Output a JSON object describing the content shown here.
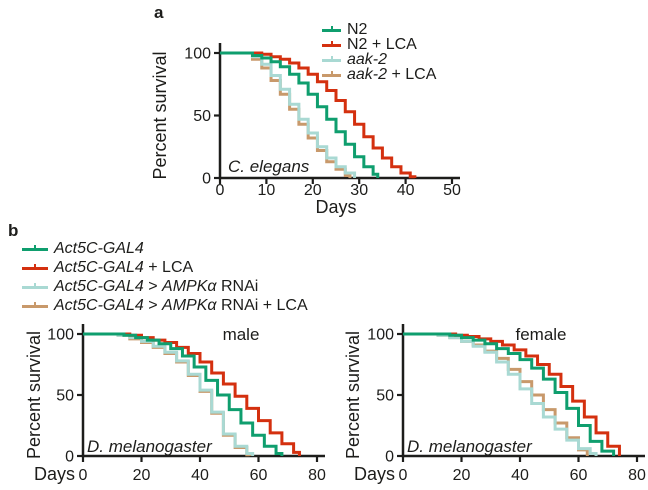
{
  "panels": {
    "a": {
      "label": "a"
    },
    "b": {
      "label": "b"
    }
  },
  "colors": {
    "green": "#0f9e6e",
    "red": "#d4300f",
    "lightblue": "#a9d9d3",
    "tan": "#c8996b",
    "axis": "#1d1d1b"
  },
  "legends": {
    "a": {
      "items": [
        {
          "color": "#0f9e6e",
          "segments": [
            {
              "text": "N2",
              "italic": false
            }
          ]
        },
        {
          "color": "#d4300f",
          "segments": [
            {
              "text": "N2 + LCA",
              "italic": false
            }
          ]
        },
        {
          "color": "#a9d9d3",
          "segments": [
            {
              "text": "aak-2",
              "italic": true
            }
          ]
        },
        {
          "color": "#c8996b",
          "segments": [
            {
              "text": "aak-2",
              "italic": true
            },
            {
              "text": " + LCA",
              "italic": false
            }
          ]
        }
      ]
    },
    "b": {
      "items": [
        {
          "color": "#0f9e6e",
          "segments": [
            {
              "text": "Act5C-GAL4",
              "italic": true
            }
          ]
        },
        {
          "color": "#d4300f",
          "segments": [
            {
              "text": "Act5C-GAL4",
              "italic": true
            },
            {
              "text": " + LCA",
              "italic": false
            }
          ]
        },
        {
          "color": "#a9d9d3",
          "segments": [
            {
              "text": "Act5C-GAL4",
              "italic": true
            },
            {
              "text": " > ",
              "italic": false
            },
            {
              "text": "AMPKα",
              "italic": true
            },
            {
              "text": " RNAi",
              "italic": false
            }
          ]
        },
        {
          "color": "#c8996b",
          "segments": [
            {
              "text": "Act5C-GAL4",
              "italic": true
            },
            {
              "text": " > ",
              "italic": false
            },
            {
              "text": "AMPKα",
              "italic": true
            },
            {
              "text": " RNAi + LCA",
              "italic": false
            }
          ]
        }
      ]
    }
  },
  "chart_data": [
    {
      "id": "c-elegans",
      "type": "line",
      "style": "kaplan-meier-step",
      "panel": "a",
      "inner_title": "",
      "organism_label": "C. elegans",
      "xlabel": "Days",
      "ylabel": "Percent survival",
      "xlim": [
        0,
        50
      ],
      "xticks": [
        0,
        10,
        20,
        30,
        40,
        50
      ],
      "ylim": [
        0,
        100
      ],
      "yticks": [
        0,
        50,
        100
      ],
      "grid": false,
      "legend_position": "top-right-outside",
      "series": [
        {
          "name": "N2",
          "color": "#0f9e6e",
          "x": [
            0,
            7,
            9,
            11,
            13,
            15,
            17,
            19,
            21,
            23,
            25,
            27,
            29,
            31,
            33,
            34
          ],
          "y": [
            100,
            98,
            96,
            93,
            89,
            83,
            76,
            67,
            57,
            47,
            37,
            27,
            17,
            9,
            3,
            0
          ]
        },
        {
          "name": "N2 + LCA",
          "color": "#d4300f",
          "x": [
            0,
            9,
            11,
            13,
            15,
            17,
            19,
            21,
            23,
            25,
            27,
            29,
            31,
            33,
            35,
            37,
            39,
            41,
            42
          ],
          "y": [
            100,
            99,
            97,
            95,
            92,
            88,
            83,
            77,
            70,
            62,
            53,
            43,
            33,
            24,
            16,
            9,
            4,
            1,
            0
          ]
        },
        {
          "name": "aak-2",
          "color": "#a9d9d3",
          "x": [
            0,
            7,
            9,
            11,
            13,
            15,
            17,
            19,
            21,
            23,
            25,
            27,
            29
          ],
          "y": [
            100,
            97,
            91,
            82,
            71,
            59,
            47,
            36,
            25,
            16,
            9,
            4,
            0
          ]
        },
        {
          "name": "aak-2 + LCA",
          "color": "#c8996b",
          "x": [
            0,
            7,
            9,
            11,
            13,
            15,
            17,
            19,
            21,
            23,
            25,
            27,
            28
          ],
          "y": [
            100,
            95,
            88,
            78,
            67,
            55,
            43,
            32,
            22,
            13,
            7,
            2,
            0
          ]
        }
      ]
    },
    {
      "id": "d-mel-male",
      "type": "line",
      "style": "kaplan-meier-step",
      "panel": "b",
      "inner_title": "male",
      "organism_label": "D. melanogaster",
      "xlabel": "Days",
      "ylabel": "Percent survival",
      "xlim": [
        0,
        80
      ],
      "xticks": [
        0,
        20,
        40,
        60,
        80
      ],
      "ylim": [
        0,
        100
      ],
      "yticks": [
        0,
        50,
        100
      ],
      "grid": false,
      "legend_position": "above-left-shared",
      "series": [
        {
          "name": "Act5C-GAL4",
          "color": "#0f9e6e",
          "x": [
            0,
            14,
            18,
            22,
            26,
            30,
            34,
            38,
            42,
            46,
            50,
            54,
            58,
            62,
            66,
            68
          ],
          "y": [
            100,
            99,
            97,
            95,
            92,
            88,
            82,
            73,
            62,
            50,
            38,
            27,
            17,
            8,
            2,
            0
          ]
        },
        {
          "name": "Act5C-GAL4 + LCA",
          "color": "#d4300f",
          "x": [
            0,
            16,
            20,
            24,
            28,
            32,
            36,
            40,
            44,
            48,
            52,
            56,
            60,
            64,
            68,
            72,
            74
          ],
          "y": [
            100,
            99,
            97,
            95,
            93,
            89,
            84,
            77,
            68,
            59,
            49,
            39,
            29,
            19,
            10,
            3,
            0
          ]
        },
        {
          "name": "Act5C-GAL4 > AMPKα RNAi",
          "color": "#a9d9d3",
          "x": [
            0,
            12,
            16,
            20,
            24,
            28,
            32,
            36,
            40,
            44,
            48,
            52,
            56,
            58
          ],
          "y": [
            100,
            99,
            97,
            94,
            90,
            85,
            78,
            67,
            54,
            36,
            18,
            8,
            2,
            0
          ]
        },
        {
          "name": "Act5C-GAL4 > AMPKα RNAi + LCA",
          "color": "#c8996b",
          "x": [
            0,
            12,
            16,
            20,
            24,
            28,
            32,
            36,
            40,
            44,
            48,
            52,
            56,
            57
          ],
          "y": [
            100,
            99,
            96,
            93,
            89,
            84,
            77,
            66,
            53,
            35,
            17,
            7,
            1,
            0
          ]
        }
      ]
    },
    {
      "id": "d-mel-female",
      "type": "line",
      "style": "kaplan-meier-step",
      "panel": "b",
      "inner_title": "female",
      "organism_label": "D. melanogaster",
      "xlabel": "Days",
      "ylabel": "Percent survival",
      "xlim": [
        0,
        80
      ],
      "xticks": [
        0,
        20,
        40,
        60,
        80
      ],
      "ylim": [
        0,
        100
      ],
      "yticks": [
        0,
        50,
        100
      ],
      "grid": false,
      "legend_position": "above-left-shared",
      "series": [
        {
          "name": "Act5C-GAL4",
          "color": "#0f9e6e",
          "x": [
            0,
            16,
            20,
            24,
            28,
            32,
            36,
            40,
            44,
            48,
            52,
            56,
            60,
            64,
            68,
            72
          ],
          "y": [
            100,
            99,
            97,
            95,
            92,
            88,
            84,
            79,
            72,
            63,
            52,
            39,
            25,
            12,
            4,
            0
          ]
        },
        {
          "name": "Act5C-GAL4 + LCA",
          "color": "#d4300f",
          "x": [
            0,
            18,
            22,
            26,
            30,
            34,
            38,
            42,
            46,
            50,
            54,
            58,
            62,
            66,
            70,
            74
          ],
          "y": [
            100,
            99,
            98,
            96,
            94,
            91,
            87,
            82,
            75,
            67,
            57,
            45,
            32,
            19,
            8,
            0
          ]
        },
        {
          "name": "Act5C-GAL4 > AMPKα RNAi",
          "color": "#a9d9d3",
          "x": [
            0,
            12,
            16,
            20,
            24,
            28,
            32,
            36,
            40,
            44,
            48,
            52,
            56,
            60,
            64,
            66
          ],
          "y": [
            100,
            99,
            97,
            94,
            90,
            85,
            77,
            67,
            55,
            43,
            32,
            22,
            13,
            6,
            2,
            0
          ]
        },
        {
          "name": "Act5C-GAL4 > AMPKα RNAi + LCA",
          "color": "#c8996b",
          "x": [
            0,
            12,
            16,
            20,
            24,
            28,
            32,
            36,
            40,
            44,
            48,
            52,
            56,
            60,
            63
          ],
          "y": [
            100,
            99,
            97,
            94,
            91,
            86,
            80,
            71,
            61,
            50,
            38,
            27,
            15,
            5,
            0
          ]
        }
      ]
    }
  ]
}
